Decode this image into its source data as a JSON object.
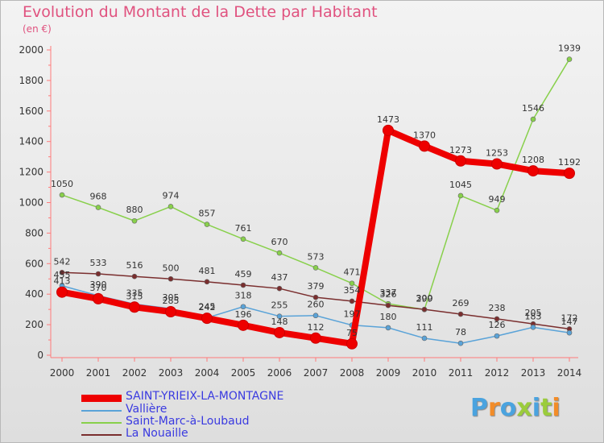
{
  "title": "Evolution du Montant de la Dette par Habitant",
  "unit": "(en €)",
  "logo_text": "Proxiti",
  "logo_colors": [
    "#4aa3df",
    "#f28c28",
    "#4aa3df",
    "#9bcc3c",
    "#4aa3df",
    "#9bcc3c",
    "#f28c28"
  ],
  "chart_data": {
    "type": "line",
    "x": [
      "2000",
      "2001",
      "2002",
      "2003",
      "2004",
      "2005",
      "2006",
      "2007",
      "2008",
      "2009",
      "2010",
      "2011",
      "2012",
      "2013",
      "2014"
    ],
    "ylim": [
      0,
      2000
    ],
    "yticks": [
      "0",
      "200",
      "400",
      "600",
      "800",
      "1000",
      "1200",
      "1400",
      "1600",
      "1800",
      "2000"
    ],
    "grid": false,
    "legend_position": "bottom-left",
    "series": [
      {
        "name": "SAINT-YRIEIX-LA-MONTAGNE",
        "color": "#ee0000",
        "values": [
          413,
          370,
          315,
          285,
          242,
          196,
          148,
          112,
          75,
          1473,
          1370,
          1273,
          1253,
          1208,
          1192
        ],
        "labels": [
          "413",
          "370",
          "315",
          "285",
          "242",
          "196",
          "148",
          "112",
          "75",
          "1473",
          "1370",
          "1273",
          "1253",
          "1208",
          "1192"
        ]
      },
      {
        "name": "Vallière",
        "color": "#5aa3d8",
        "values": [
          455,
          390,
          335,
          305,
          245,
          318,
          255,
          260,
          197,
          180,
          111,
          78,
          126,
          183,
          147
        ],
        "labels": [
          "455",
          "390",
          "335",
          "305",
          "245",
          "318",
          "255",
          "260",
          "197",
          "180",
          "111",
          "78",
          "126",
          "183",
          "147"
        ]
      },
      {
        "name": "Saint-Marc-à-Loubaud",
        "color": "#88d04b",
        "values": [
          1050,
          968,
          880,
          974,
          857,
          761,
          670,
          573,
          471,
          337,
          299,
          1045,
          949,
          1546,
          1939
        ],
        "labels": [
          "1050",
          "968",
          "880",
          "974",
          "857",
          "761",
          "670",
          "573",
          "471",
          "337",
          "299",
          "1045",
          "949",
          "1546",
          "1939"
        ]
      },
      {
        "name": "La Nouaille",
        "color": "#7a2e2e",
        "values": [
          542,
          533,
          516,
          500,
          481,
          459,
          437,
          379,
          354,
          326,
          300,
          269,
          238,
          205,
          172
        ],
        "labels": [
          "542",
          "533",
          "516",
          "500",
          "481",
          "459",
          "437",
          "379",
          "354",
          "326",
          "300",
          "269",
          "238",
          "205",
          "172"
        ]
      }
    ]
  }
}
